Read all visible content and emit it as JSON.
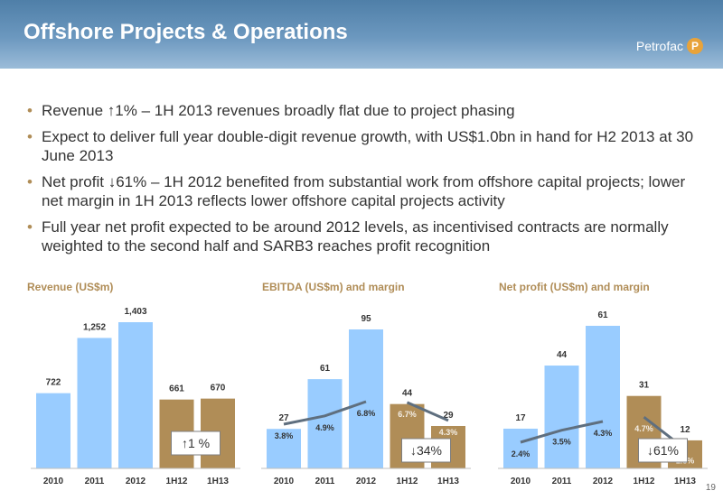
{
  "header": {
    "title": "Offshore Projects & Operations",
    "logo_text": "Petrofac",
    "logo_mark": "P"
  },
  "bullets": [
    "Revenue ↑1% – 1H 2013 revenues broadly flat due to project phasing",
    "Expect to deliver full year double-digit revenue growth, with US$1.0bn in hand for H2 2013 at 30 June 2013",
    "Net profit ↓61% – 1H 2012 benefited from substantial work from offshore capital projects; lower net margin in 1H 2013 reflects lower offshore capital projects activity",
    "Full year net profit expected to be around 2012 levels, as incentivised contracts are normally weighted to the second half and SARB3 reaches profit recognition"
  ],
  "colors": {
    "title_gold": "#b08d57",
    "bar_blue": "#99ccff",
    "bar_gold": "#b08d57",
    "margin_line": "#5f6f7f",
    "text": "#333333"
  },
  "chart_data": [
    {
      "type": "bar",
      "title": "Revenue (US$m)",
      "categories": [
        "2010",
        "2011",
        "2012",
        "1H12",
        "1H13"
      ],
      "values": [
        722,
        1252,
        1403,
        661,
        670
      ],
      "value_labels": [
        "722",
        "1,252",
        "1,403",
        "661",
        "670"
      ],
      "callout": "↑1 %"
    },
    {
      "type": "bar",
      "title": "EBITDA (US$m) and margin",
      "categories": [
        "2010",
        "2011",
        "2012",
        "1H12",
        "1H13"
      ],
      "values": [
        27,
        61,
        95,
        44,
        29
      ],
      "value_labels": [
        "27",
        "61",
        "95",
        "44",
        "29"
      ],
      "margins": [
        3.8,
        4.9,
        6.8,
        6.7,
        4.3
      ],
      "margin_labels": [
        "3.8%",
        "4.9%",
        "6.8%",
        "6.7%",
        "4.3%"
      ],
      "callout": "↓34%"
    },
    {
      "type": "bar",
      "title": "Net profit (US$m) and margin",
      "categories": [
        "2010",
        "2011",
        "2012",
        "1H12",
        "1H13"
      ],
      "values": [
        17,
        44,
        61,
        31,
        12
      ],
      "value_labels": [
        "17",
        "44",
        "61",
        "31",
        "12"
      ],
      "margins": [
        2.4,
        3.5,
        4.3,
        4.7,
        1.8
      ],
      "margin_labels": [
        "2.4%",
        "3.5%",
        "4.3%",
        "4.7%",
        "1.8%"
      ],
      "callout": "↓61%"
    }
  ],
  "page_number": "19"
}
